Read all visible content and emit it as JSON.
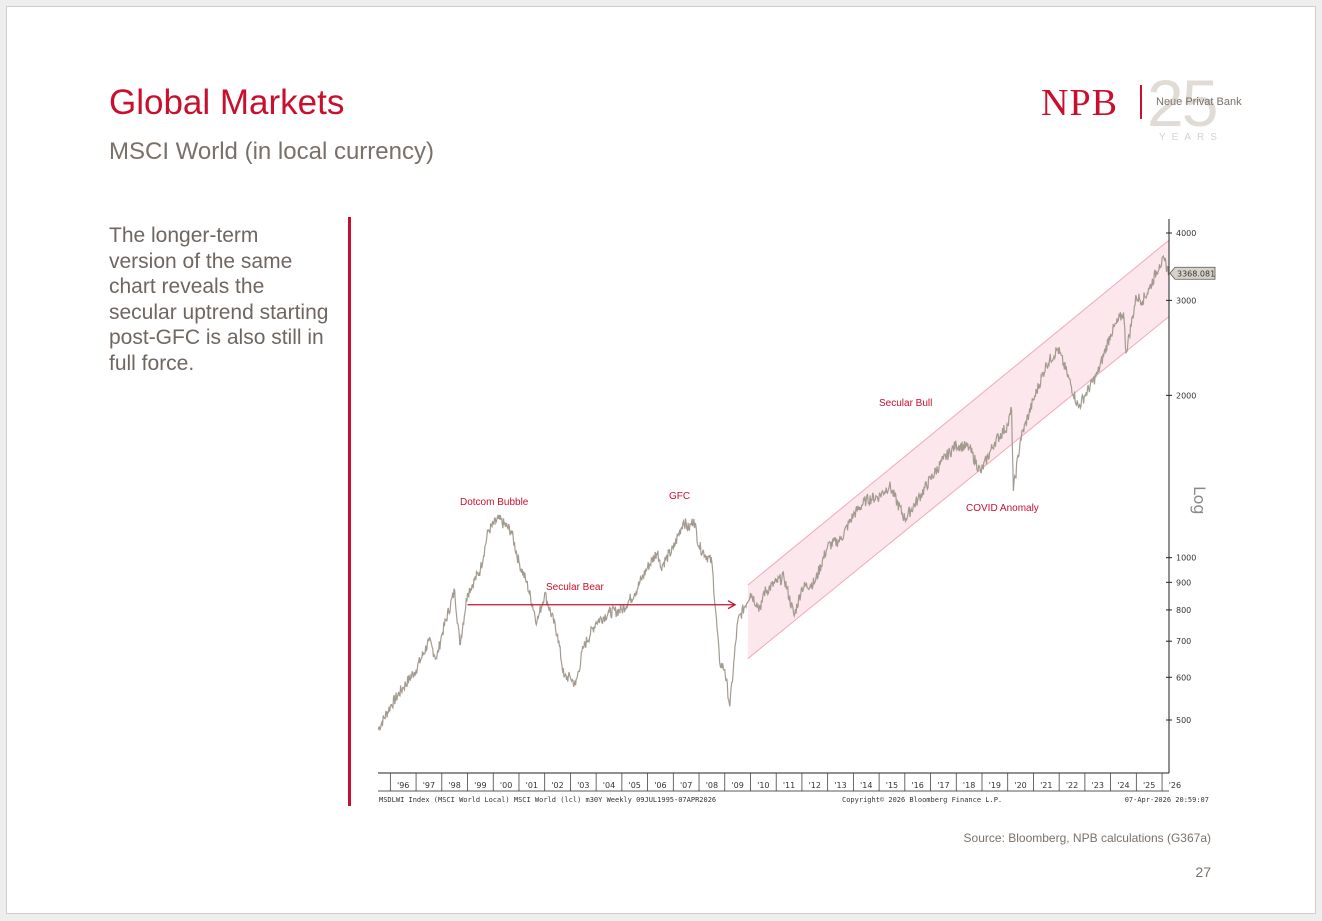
{
  "slide": {
    "title": "Global Markets",
    "subtitle": "MSCI World (in local currency)",
    "body_text": "The longer-term version of the same chart reveals the secular uptrend starting post-GFC is also still in full force.",
    "source": "Source: Bloomberg, NPB calculations (G367a)",
    "page_number": "27"
  },
  "logo": {
    "brand": "NPB",
    "name": "Neue Privat Bank",
    "anniversary": "25",
    "years": "YEARS"
  },
  "colors": {
    "accent": "#c8102e",
    "price_line": "#a39b90",
    "channel_fill": "#fbe7ec",
    "channel_line": "#f0a9b8",
    "text_gray": "#7a7068"
  },
  "chart_data": {
    "type": "line",
    "series_name": "MSDLWI Index (MSCI World Local) MSCI World (lcl) m30Y Weekly 09JUL1995-07APR2026",
    "copyright": "Copyright© 2026 Bloomberg Finance L.P.",
    "timestamp": "07-Apr-2026 20:59:07",
    "y_scale": "log",
    "y_axis_label": "Log",
    "y_ticks": [
      500,
      600,
      700,
      800,
      900,
      1000,
      2000,
      3000,
      4000
    ],
    "x_range": [
      1995.52,
      2026.27
    ],
    "year_labels": [
      "'96",
      "'97",
      "'98",
      "'99",
      "'00",
      "'01",
      "'02",
      "'03",
      "'04",
      "'05",
      "'06",
      "'07",
      "'08",
      "'09",
      "'10",
      "'11",
      "'12",
      "'13",
      "'14",
      "'15",
      "'16",
      "'17",
      "'18",
      "'19",
      "'20",
      "'21",
      "'22",
      "'23",
      "'24",
      "'25",
      "'26"
    ],
    "last_value": "3368.081",
    "series": [
      {
        "x": [
          1995.52,
          1996.0,
          1996.5,
          1997.0,
          1997.5,
          1997.8,
          1998.0,
          1998.5,
          1998.7,
          1999.0,
          1999.5,
          1999.8,
          2000.2,
          2000.7,
          2001.0,
          2001.3,
          2001.7,
          2001.8,
          2002.0,
          2002.5,
          2002.75,
          2003.0,
          2003.2,
          2003.5,
          2004.0,
          2004.5,
          2005.0,
          2005.5,
          2006.0,
          2006.4,
          2006.5,
          2007.0,
          2007.4,
          2007.6,
          2007.8,
          2008.0,
          2008.5,
          2008.8,
          2009.0,
          2009.2,
          2009.5,
          2010.0,
          2010.4,
          2010.5,
          2011.0,
          2011.3,
          2011.7,
          2012.0,
          2012.5,
          2013.0,
          2013.5,
          2014.0,
          2014.5,
          2015.0,
          2015.4,
          2016.0,
          2016.5,
          2017.0,
          2017.5,
          2018.0,
          2018.5,
          2018.95,
          2019.5,
          2020.0,
          2020.15,
          2020.22,
          2020.5,
          2021.0,
          2021.5,
          2021.95,
          2022.3,
          2022.75,
          2023.0,
          2023.5,
          2024.0,
          2024.5,
          2024.6,
          2025.0,
          2025.25,
          2025.5,
          2025.9,
          2026.1,
          2026.27
        ],
        "y": [
          480,
          530,
          575,
          620,
          700,
          650,
          720,
          870,
          690,
          860,
          950,
          1120,
          1180,
          1120,
          980,
          900,
          760,
          790,
          860,
          720,
          600,
          600,
          580,
          680,
          760,
          790,
          800,
          860,
          960,
          1030,
          960,
          1040,
          1170,
          1130,
          1180,
          1050,
          980,
          640,
          620,
          530,
          760,
          860,
          800,
          860,
          900,
          920,
          780,
          880,
          900,
          1050,
          1080,
          1200,
          1280,
          1300,
          1360,
          1180,
          1280,
          1400,
          1520,
          1620,
          1600,
          1440,
          1640,
          1760,
          1880,
          1330,
          1660,
          1960,
          2280,
          2440,
          2200,
          1900,
          2000,
          2200,
          2600,
          2850,
          2400,
          3050,
          3000,
          3150,
          3500,
          3550,
          3368
        ]
      }
    ],
    "channel": {
      "x": [
        2009.9,
        2026.27
      ],
      "upper": [
        890,
        3880
      ],
      "lower": [
        650,
        2800
      ]
    },
    "annotations": [
      {
        "label": "Dotcom Bubble"
      },
      {
        "label": "GFC"
      },
      {
        "label": "Secular Bear"
      },
      {
        "label": "Secular Bull"
      },
      {
        "label": "COVID Anomaly"
      }
    ]
  }
}
